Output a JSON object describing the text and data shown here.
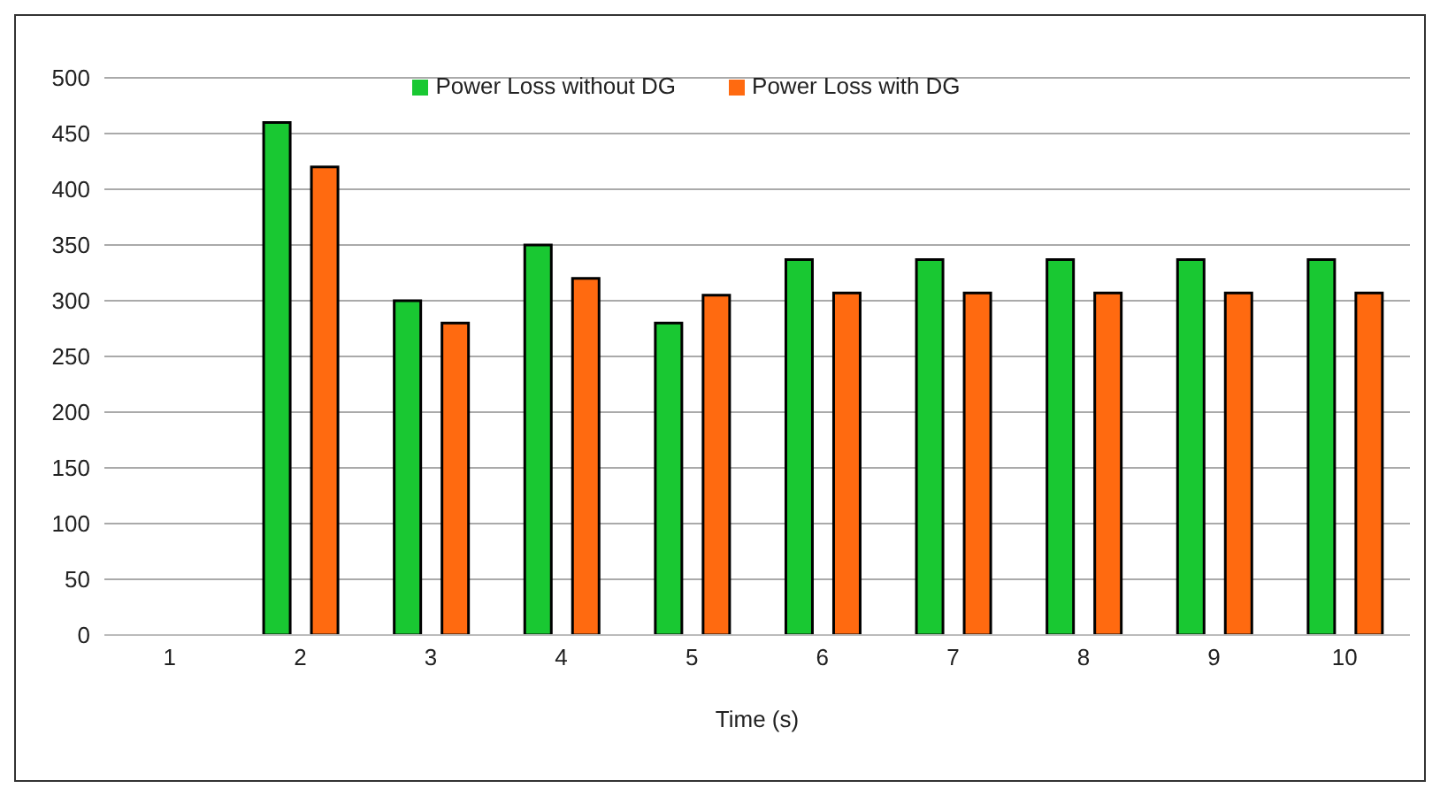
{
  "chart_data": {
    "type": "bar",
    "xlabel": "Time (s)",
    "categories": [
      "1",
      "2",
      "3",
      "4",
      "5",
      "6",
      "7",
      "8",
      "9",
      "10"
    ],
    "series": [
      {
        "name": "Power Loss without DG",
        "color": "#19c832",
        "values": [
          null,
          460,
          300,
          350,
          280,
          337,
          337,
          337,
          337,
          337
        ]
      },
      {
        "name": "Power Loss with DG",
        "color": "#ff6a10",
        "values": [
          null,
          420,
          280,
          320,
          305,
          307,
          307,
          307,
          307,
          307
        ]
      }
    ],
    "ylim": [
      0,
      500
    ],
    "yticks": [
      0,
      50,
      100,
      150,
      200,
      250,
      300,
      350,
      400,
      450,
      500
    ],
    "grid": "y",
    "legend": "top"
  }
}
